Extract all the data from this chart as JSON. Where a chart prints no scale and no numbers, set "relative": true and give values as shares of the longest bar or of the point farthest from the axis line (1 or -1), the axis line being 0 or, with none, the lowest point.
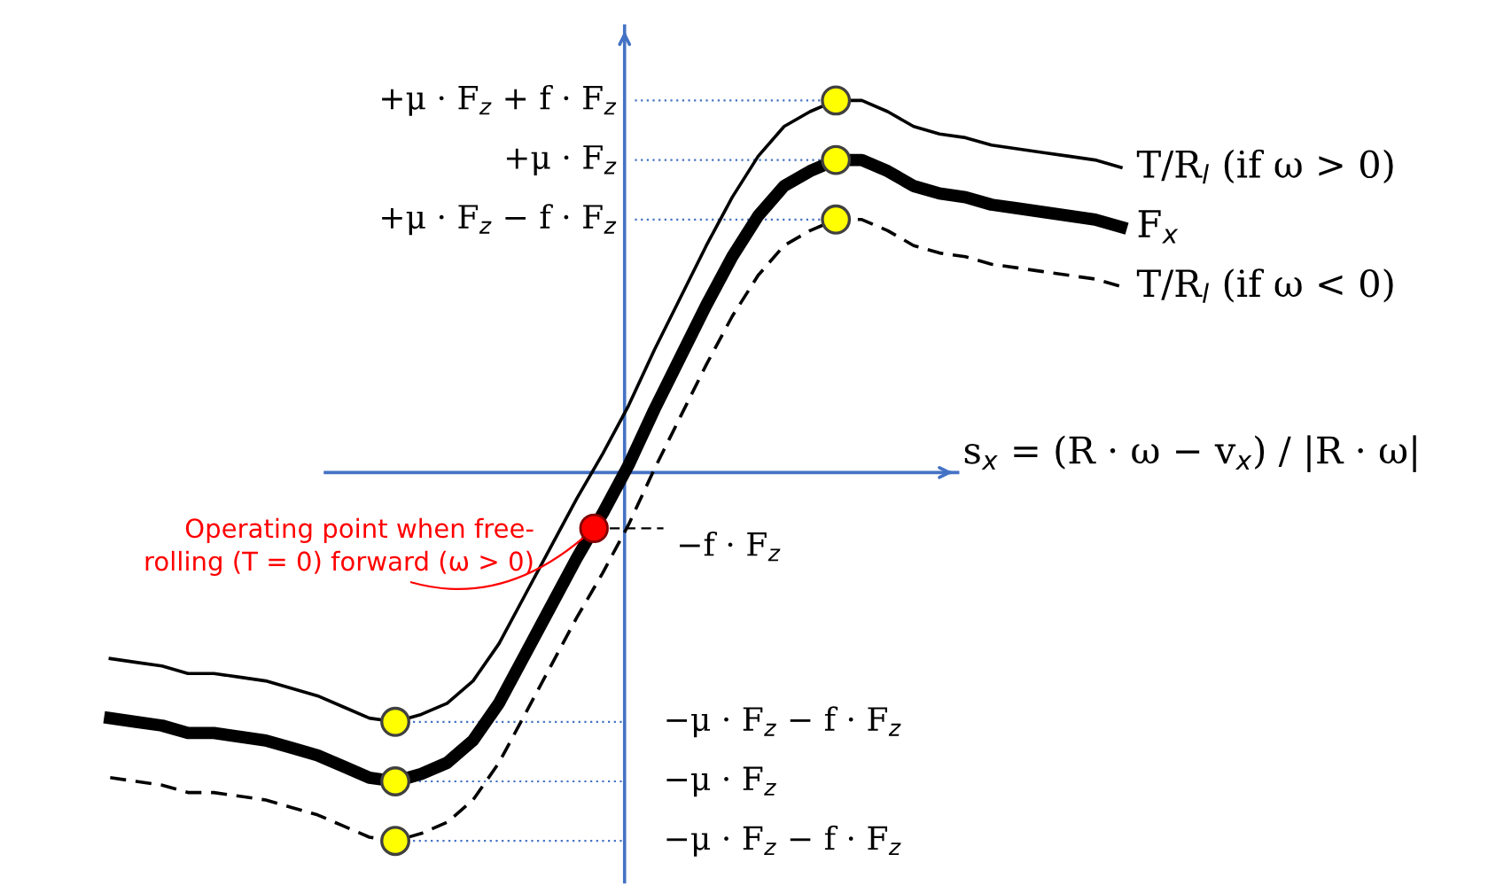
{
  "chart_data": {
    "type": "line",
    "relative": true,
    "xlabel": "s$_{x}$ = (R · ω − v$_{x}$) / |R · ω|",
    "categories": [
      null,
      null,
      null,
      null,
      null,
      null,
      null,
      null,
      null,
      null,
      null,
      null,
      null,
      null,
      null,
      null,
      null,
      null,
      null,
      null,
      null,
      null,
      null,
      null,
      null,
      null,
      null,
      null,
      null,
      null,
      null,
      null,
      null,
      null,
      null,
      null,
      null,
      null,
      null,
      null
    ],
    "series": [
      {
        "name": "T/R$_{l}$ (if ω > 0)",
        "color": "#000000",
        "line_style": "solid",
        "values": [
          -0.5,
          -0.51,
          -0.52,
          -0.54,
          -0.54,
          -0.55,
          -0.56,
          -0.58,
          -0.6,
          -0.63,
          -0.66,
          -0.67,
          -0.65,
          -0.62,
          -0.56,
          -0.46,
          -0.33,
          -0.2,
          -0.07,
          0.05,
          0.18,
          0.33,
          0.47,
          0.61,
          0.74,
          0.85,
          0.93,
          0.97,
          1.0,
          1.0,
          0.97,
          0.93,
          0.91,
          0.9,
          0.88,
          0.87,
          0.86,
          0.85,
          0.84,
          0.82
        ]
      },
      {
        "name": "F$_{x}$",
        "color": "#000000",
        "line_style": "solid",
        "values": [
          -0.66,
          -0.67,
          -0.68,
          -0.7,
          -0.7,
          -0.71,
          -0.72,
          -0.74,
          -0.76,
          -0.79,
          -0.82,
          -0.83,
          -0.81,
          -0.78,
          -0.72,
          -0.62,
          -0.49,
          -0.36,
          -0.23,
          -0.11,
          0.02,
          0.17,
          0.31,
          0.45,
          0.58,
          0.69,
          0.77,
          0.81,
          0.84,
          0.84,
          0.81,
          0.77,
          0.75,
          0.74,
          0.72,
          0.71,
          0.7,
          0.69,
          0.68,
          0.66
        ]
      },
      {
        "name": "T/R$_{l}$ (if ω < 0)",
        "color": "#000000",
        "line_style": "dashed",
        "values": [
          -0.82,
          -0.83,
          -0.84,
          -0.86,
          -0.86,
          -0.87,
          -0.88,
          -0.9,
          -0.92,
          -0.95,
          -0.98,
          -0.99,
          -0.97,
          -0.94,
          -0.88,
          -0.78,
          -0.65,
          -0.52,
          -0.39,
          -0.27,
          -0.14,
          0.01,
          0.15,
          0.29,
          0.42,
          0.53,
          0.61,
          0.65,
          0.68,
          0.68,
          0.65,
          0.61,
          0.59,
          0.58,
          0.56,
          0.55,
          0.54,
          0.53,
          0.52,
          0.5
        ]
      }
    ],
    "ref_lines": [
      {
        "axis": "y",
        "value": 1.0,
        "label": "+μ · F$_{z}$ + f · F$_{z}$",
        "color": "#4472c4",
        "line_style": "dotted"
      },
      {
        "axis": "y",
        "value": 0.84,
        "label": "+μ · F$_{z}$",
        "color": "#4472c4",
        "line_style": "dotted"
      },
      {
        "axis": "y",
        "value": 0.68,
        "label": "+μ · F$_{z}$ − f · F$_{z}$",
        "color": "#4472c4",
        "line_style": "dotted"
      },
      {
        "axis": "y",
        "value": -0.15,
        "label": "−f · F$_{z}$",
        "color": "#000000",
        "line_style": "dashed"
      },
      {
        "axis": "y",
        "value": -0.67,
        "label": "−μ · F$_{z}$ − f · F$_{z}$",
        "color": "#4472c4",
        "line_style": "dotted"
      },
      {
        "axis": "y",
        "value": -0.83,
        "label": "−μ · F$_{z}$",
        "color": "#4472c4",
        "line_style": "dotted"
      },
      {
        "axis": "y",
        "value": -0.99,
        "label": "−μ · F$_{z}$ − f · F$_{z}$",
        "color": "#4472c4",
        "line_style": "dotted"
      }
    ],
    "annotations": [
      "Operating point when free-\nrolling (T = 0) forward (ω > 0)"
    ]
  }
}
